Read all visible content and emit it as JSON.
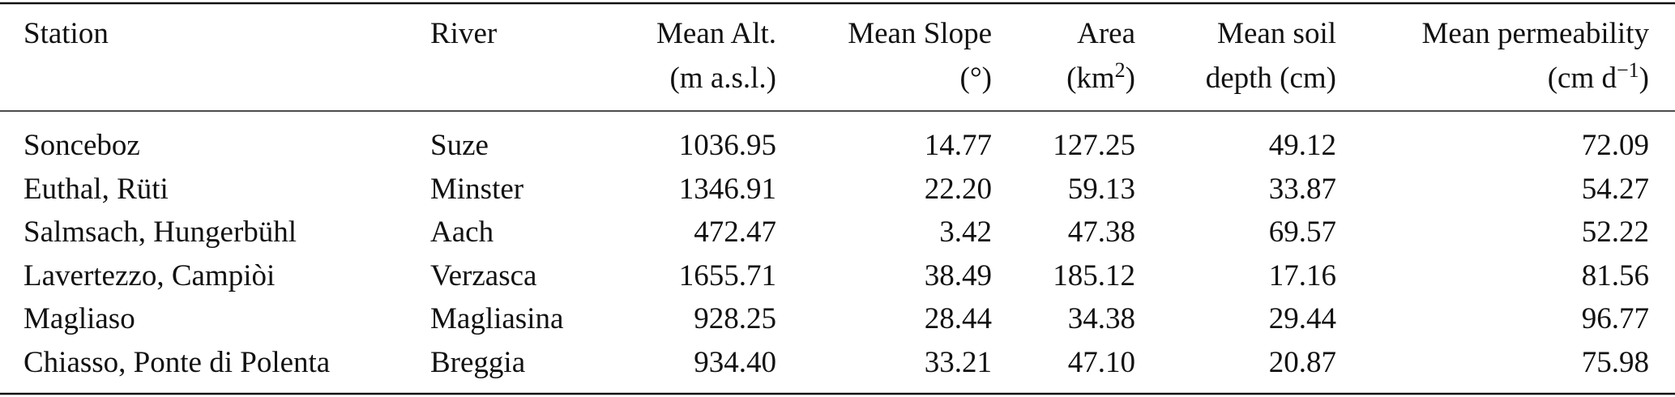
{
  "table": {
    "header": [
      [
        "Station"
      ],
      [
        "River"
      ],
      [
        "Mean Alt.",
        "(m a.s.l.)"
      ],
      [
        "Mean Slope",
        "(°)"
      ],
      [
        "Area",
        {
          "pre": "(km",
          "sup": "2",
          "post": ")"
        }
      ],
      [
        "Mean soil",
        "depth (cm)"
      ],
      [
        "Mean permeability",
        {
          "pre": "(cm d",
          "sup": "−1",
          "post": ")"
        }
      ]
    ],
    "rows": [
      [
        "Sonceboz",
        "Suze",
        "1036.95",
        "14.77",
        "127.25",
        "49.12",
        "72.09"
      ],
      [
        "Euthal, Rüti",
        "Minster",
        "1346.91",
        "22.20",
        "59.13",
        "33.87",
        "54.27"
      ],
      [
        "Salmsach, Hungerbühl",
        "Aach",
        "472.47",
        "3.42",
        "47.38",
        "69.57",
        "52.22"
      ],
      [
        "Lavertezzo, Campiòi",
        "Verzasca",
        "1655.71",
        "38.49",
        "185.12",
        "17.16",
        "81.56"
      ],
      [
        "Magliaso",
        "Magliasina",
        "928.25",
        "28.44",
        "34.38",
        "29.44",
        "96.77"
      ],
      [
        "Chiasso, Ponte di Polenta",
        "Breggia",
        "934.40",
        "33.21",
        "47.10",
        "20.87",
        "75.98"
      ]
    ]
  }
}
